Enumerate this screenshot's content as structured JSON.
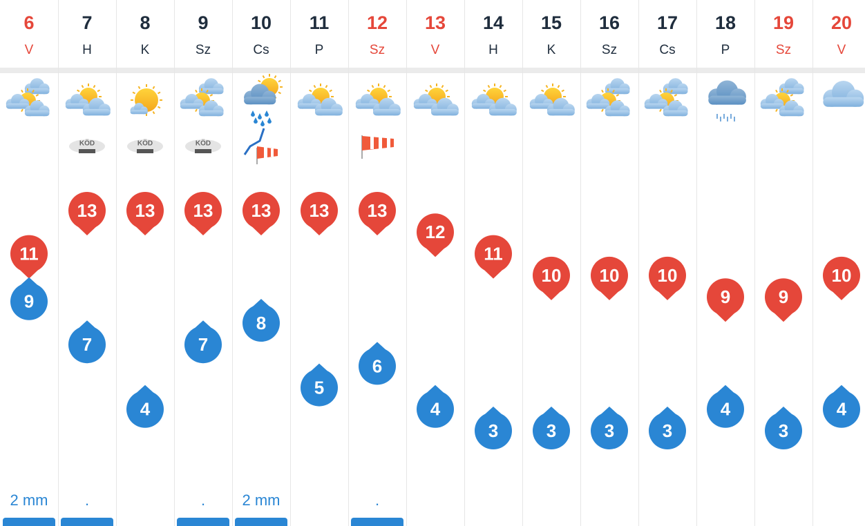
{
  "days": [
    {
      "day": "6",
      "weekday": "V",
      "color": "#e5473a",
      "max": 11,
      "min": 9,
      "precipitation": "2 mm"
    },
    {
      "day": "7",
      "weekday": "H",
      "color": "#1f2d3d",
      "max": 13,
      "min": 7,
      "fog": "KÖD",
      "precipitation": "."
    },
    {
      "day": "8",
      "weekday": "K",
      "color": "#1f2d3d",
      "max": 13,
      "min": 4,
      "fog": "KÖD"
    },
    {
      "day": "9",
      "weekday": "Sz",
      "color": "#1f2d3d",
      "max": 13,
      "min": 7,
      "fog": "KÖD",
      "precipitation": "."
    },
    {
      "day": "10",
      "weekday": "Cs",
      "color": "#1f2d3d",
      "max": 13,
      "min": 8,
      "precipitation": "2 mm"
    },
    {
      "day": "11",
      "weekday": "P",
      "color": "#1f2d3d",
      "max": 13,
      "min": 5
    },
    {
      "day": "12",
      "weekday": "Sz",
      "color": "#e5473a",
      "max": 13,
      "min": 6,
      "precipitation": "."
    },
    {
      "day": "13",
      "weekday": "V",
      "color": "#e5473a",
      "max": 12,
      "min": 4
    },
    {
      "day": "14",
      "weekday": "H",
      "color": "#1f2d3d",
      "max": 11,
      "min": 3
    },
    {
      "day": "15",
      "weekday": "K",
      "color": "#1f2d3d",
      "max": 10,
      "min": 3
    },
    {
      "day": "16",
      "weekday": "Sz",
      "color": "#1f2d3d",
      "max": 10,
      "min": 3
    },
    {
      "day": "17",
      "weekday": "Cs",
      "color": "#1f2d3d",
      "max": 10,
      "min": 3
    },
    {
      "day": "18",
      "weekday": "P",
      "color": "#1f2d3d",
      "max": 9,
      "min": 4
    },
    {
      "day": "19",
      "weekday": "Sz",
      "color": "#e5473a",
      "max": 9,
      "min": 3
    },
    {
      "day": "20",
      "weekday": "V",
      "color": "#e5473a",
      "max": 10,
      "min": 4
    }
  ]
}
